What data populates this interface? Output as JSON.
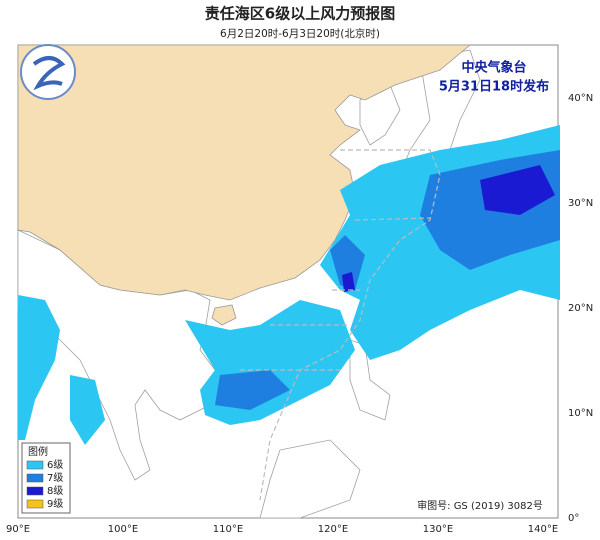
{
  "header": {
    "title": "责任海区6级以上风力预报图",
    "subtitle": "6月2日20时-6月3日20时(北京时)"
  },
  "issuer": {
    "agency": "中央气象台",
    "issued": "5月31日18时发布"
  },
  "legend": {
    "title": "图例",
    "items": [
      {
        "label": "6级",
        "color": "#2cc6f2"
      },
      {
        "label": "7级",
        "color": "#1f7fe0"
      },
      {
        "label": "8级",
        "color": "#1a1ad2"
      },
      {
        "label": "9级",
        "color": "#f5c21b"
      }
    ]
  },
  "map": {
    "lon_labels": [
      "90°E",
      "100°E",
      "110°E",
      "120°E",
      "130°E",
      "140°E"
    ],
    "lat_labels": [
      "0°",
      "10°N",
      "20°N",
      "30°N",
      "40°N"
    ]
  },
  "footer": {
    "review": "审图号: GS (2019) 3082号"
  }
}
